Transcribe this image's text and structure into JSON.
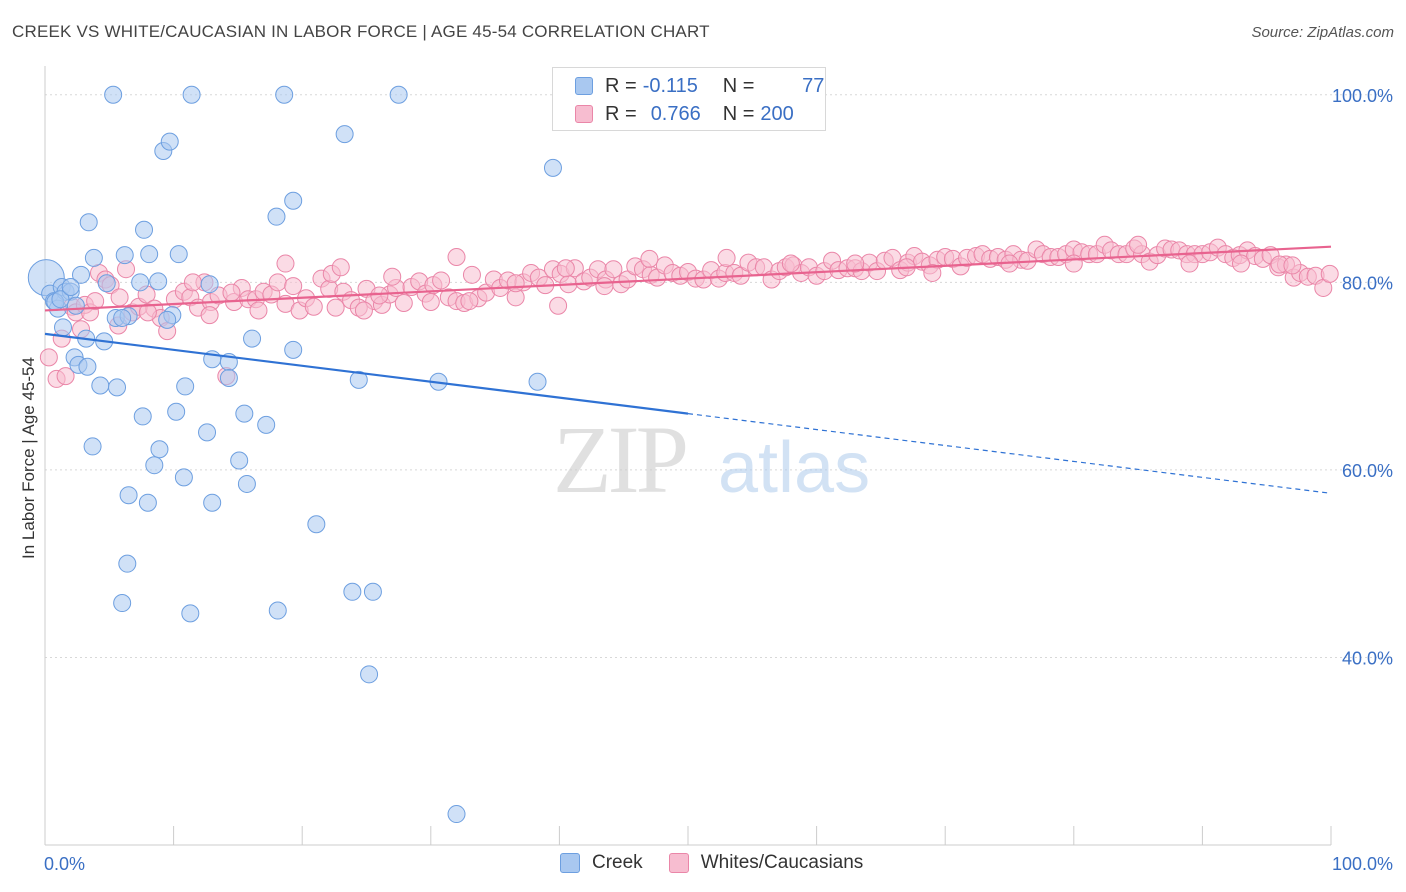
{
  "header": {
    "title": "CREEK VS WHITE/CAUCASIAN IN LABOR FORCE | AGE 45-54 CORRELATION CHART",
    "source": "Source: ZipAtlas.com"
  },
  "legend": {
    "r_label": "R =",
    "n_label": "N =",
    "rows": [
      {
        "r": "-0.115",
        "n": "77",
        "color": "#a9c8f0",
        "border": "#6d9fe0"
      },
      {
        "r": "0.766",
        "n": "200",
        "color": "#f7bdd0",
        "border": "#ea86a8"
      }
    ]
  },
  "watermark": {
    "zip": "ZIP",
    "atlas": "atlas"
  },
  "colors": {
    "creek_fill": "#a9c8f0",
    "creek_stroke": "#6d9fe0",
    "creek_line": "#2f72d4",
    "white_fill": "#f7bdd0",
    "white_stroke": "#ea86a8",
    "white_line": "#e8638f",
    "tick_label": "#3a6fc4",
    "grid": "#d8d8d8"
  },
  "chart_data": {
    "type": "scatter",
    "title": "CREEK VS WHITE/CAUCASIAN IN LABOR FORCE | AGE 45-54 CORRELATION CHART",
    "xlabel": "",
    "ylabel": "In Labor Force | Age 45-54",
    "xlim": [
      0,
      100
    ],
    "ylim": [
      20,
      102
    ],
    "x_tick_labels": [
      "0.0%",
      "100.0%"
    ],
    "y_ticks": [
      40,
      60,
      80,
      100
    ],
    "y_tick_labels": [
      "40.0%",
      "60.0%",
      "80.0%",
      "100.0%"
    ],
    "grid": true,
    "legend_position": "top-center",
    "series": [
      {
        "name": "Creek",
        "r": -0.115,
        "n": 77,
        "trend": {
          "x0": 0,
          "y0": 74.5,
          "x1": 50,
          "y1": 66.0,
          "dash_to_x": 100,
          "dash_to_y": 57.5
        },
        "points": [
          [
            0.1,
            80.5
          ],
          [
            0.4,
            78.8
          ],
          [
            0.7,
            78.0
          ],
          [
            1.0,
            77.2
          ],
          [
            1.3,
            79.5
          ],
          [
            1.6,
            79.0
          ],
          [
            2.0,
            79.0
          ],
          [
            2.4,
            77.5
          ],
          [
            2.8,
            80.8
          ],
          [
            3.4,
            86.4
          ],
          [
            3.8,
            82.6
          ],
          [
            4.6,
            73.7
          ],
          [
            4.8,
            79.9
          ],
          [
            5.3,
            100.0
          ],
          [
            5.5,
            76.2
          ],
          [
            6.2,
            82.9
          ],
          [
            6.5,
            76.4
          ],
          [
            7.4,
            80.0
          ],
          [
            7.7,
            85.6
          ],
          [
            8.1,
            83.0
          ],
          [
            8.8,
            80.1
          ],
          [
            9.2,
            94.0
          ],
          [
            9.7,
            95.0
          ],
          [
            9.9,
            76.5
          ],
          [
            10.4,
            83.0
          ],
          [
            11.4,
            100.0
          ],
          [
            12.8,
            79.8
          ],
          [
            13.0,
            71.8
          ],
          [
            14.3,
            71.5
          ],
          [
            16.1,
            74.0
          ],
          [
            18.0,
            87.0
          ],
          [
            18.6,
            100.0
          ],
          [
            19.3,
            88.7
          ],
          [
            19.3,
            72.8
          ],
          [
            23.3,
            95.8
          ],
          [
            24.4,
            69.6
          ],
          [
            27.5,
            100.0
          ],
          [
            30.6,
            69.4
          ],
          [
            38.3,
            69.4
          ],
          [
            39.5,
            92.2
          ],
          [
            1.4,
            75.2
          ],
          [
            2.3,
            72.0
          ],
          [
            2.6,
            71.2
          ],
          [
            3.3,
            71.0
          ],
          [
            4.3,
            69.0
          ],
          [
            5.6,
            68.8
          ],
          [
            7.6,
            65.7
          ],
          [
            8.9,
            62.2
          ],
          [
            8.5,
            60.5
          ],
          [
            10.2,
            66.2
          ],
          [
            10.8,
            59.2
          ],
          [
            10.9,
            68.9
          ],
          [
            12.6,
            64.0
          ],
          [
            13.0,
            56.5
          ],
          [
            14.3,
            69.8
          ],
          [
            15.1,
            61.0
          ],
          [
            15.5,
            66.0
          ],
          [
            15.7,
            58.5
          ],
          [
            17.2,
            64.8
          ],
          [
            21.1,
            54.2
          ],
          [
            3.7,
            62.5
          ],
          [
            6.5,
            57.3
          ],
          [
            8.0,
            56.5
          ],
          [
            6.4,
            50.0
          ],
          [
            6.0,
            45.8
          ],
          [
            11.3,
            44.7
          ],
          [
            18.1,
            45.0
          ],
          [
            23.9,
            47.0
          ],
          [
            25.5,
            47.0
          ],
          [
            25.2,
            38.2
          ],
          [
            32.0,
            23.3
          ],
          [
            0.8,
            77.9
          ],
          [
            1.2,
            78.2
          ],
          [
            3.2,
            74.0
          ],
          [
            6.0,
            76.2
          ],
          [
            9.5,
            76.0
          ],
          [
            2.0,
            79.5
          ]
        ]
      },
      {
        "name": "Whites/Caucasians",
        "r": 0.766,
        "n": 200,
        "trend": {
          "x0": 0,
          "y0": 77.0,
          "x1": 100,
          "y1": 83.8
        },
        "points": [
          [
            0.3,
            72.0
          ],
          [
            0.9,
            69.7
          ],
          [
            1.3,
            74.0
          ],
          [
            1.6,
            70.0
          ],
          [
            2.1,
            77.4
          ],
          [
            2.4,
            76.8
          ],
          [
            2.8,
            75.0
          ],
          [
            3.1,
            77.6
          ],
          [
            3.5,
            76.8
          ],
          [
            3.9,
            78.0
          ],
          [
            4.2,
            81.0
          ],
          [
            4.7,
            80.3
          ],
          [
            5.1,
            79.7
          ],
          [
            5.7,
            75.4
          ],
          [
            6.3,
            81.4
          ],
          [
            6.8,
            76.8
          ],
          [
            7.3,
            77.4
          ],
          [
            7.9,
            78.7
          ],
          [
            8.5,
            77.2
          ],
          [
            9.0,
            76.2
          ],
          [
            9.5,
            74.8
          ],
          [
            10.1,
            78.2
          ],
          [
            10.8,
            79.0
          ],
          [
            11.3,
            78.4
          ],
          [
            11.9,
            77.3
          ],
          [
            12.4,
            80.0
          ],
          [
            12.9,
            77.9
          ],
          [
            13.5,
            78.6
          ],
          [
            14.1,
            70.0
          ],
          [
            14.7,
            77.9
          ],
          [
            15.3,
            79.4
          ],
          [
            15.8,
            78.2
          ],
          [
            16.4,
            78.2
          ],
          [
            17.0,
            79.0
          ],
          [
            17.6,
            78.7
          ],
          [
            18.1,
            80.0
          ],
          [
            18.7,
            77.7
          ],
          [
            19.3,
            79.6
          ],
          [
            19.8,
            77.0
          ],
          [
            20.3,
            78.3
          ],
          [
            20.9,
            77.4
          ],
          [
            21.5,
            80.4
          ],
          [
            22.1,
            79.3
          ],
          [
            22.6,
            77.3
          ],
          [
            23.2,
            79.0
          ],
          [
            23.8,
            78.1
          ],
          [
            24.4,
            77.3
          ],
          [
            25.0,
            79.3
          ],
          [
            25.6,
            78.0
          ],
          [
            26.2,
            77.6
          ],
          [
            26.8,
            78.7
          ],
          [
            27.3,
            79.4
          ],
          [
            27.9,
            77.8
          ],
          [
            28.5,
            79.5
          ],
          [
            29.1,
            80.1
          ],
          [
            29.6,
            78.8
          ],
          [
            30.2,
            79.7
          ],
          [
            30.8,
            80.2
          ],
          [
            31.4,
            78.4
          ],
          [
            32.0,
            78.0
          ],
          [
            32.6,
            77.8
          ],
          [
            33.2,
            80.8
          ],
          [
            33.7,
            78.3
          ],
          [
            34.3,
            78.9
          ],
          [
            34.9,
            80.3
          ],
          [
            35.4,
            79.4
          ],
          [
            36.0,
            80.2
          ],
          [
            36.6,
            78.4
          ],
          [
            37.2,
            80.0
          ],
          [
            37.8,
            81.0
          ],
          [
            38.4,
            80.5
          ],
          [
            38.9,
            79.7
          ],
          [
            39.5,
            81.4
          ],
          [
            40.1,
            80.9
          ],
          [
            40.7,
            79.8
          ],
          [
            41.2,
            81.5
          ],
          [
            41.9,
            80.1
          ],
          [
            42.4,
            80.5
          ],
          [
            43.0,
            81.4
          ],
          [
            43.6,
            80.3
          ],
          [
            44.2,
            81.4
          ],
          [
            44.8,
            79.8
          ],
          [
            45.3,
            80.3
          ],
          [
            45.9,
            81.7
          ],
          [
            46.5,
            81.4
          ],
          [
            47.1,
            80.8
          ],
          [
            47.6,
            80.5
          ],
          [
            48.2,
            81.8
          ],
          [
            48.8,
            81.0
          ],
          [
            49.4,
            80.7
          ],
          [
            50.0,
            81.1
          ],
          [
            50.6,
            80.4
          ],
          [
            51.2,
            80.3
          ],
          [
            51.8,
            81.3
          ],
          [
            52.4,
            80.4
          ],
          [
            52.9,
            81.0
          ],
          [
            53.6,
            81.0
          ],
          [
            54.1,
            80.7
          ],
          [
            54.7,
            82.1
          ],
          [
            55.3,
            81.6
          ],
          [
            55.9,
            81.6
          ],
          [
            56.5,
            80.3
          ],
          [
            57.1,
            81.2
          ],
          [
            57.6,
            81.6
          ],
          [
            58.2,
            81.8
          ],
          [
            58.8,
            81.0
          ],
          [
            59.4,
            81.6
          ],
          [
            60.0,
            80.7
          ],
          [
            60.6,
            81.2
          ],
          [
            61.2,
            82.3
          ],
          [
            61.7,
            81.3
          ],
          [
            62.4,
            81.5
          ],
          [
            63.0,
            81.5
          ],
          [
            63.5,
            81.2
          ],
          [
            64.1,
            82.1
          ],
          [
            64.7,
            81.2
          ],
          [
            65.3,
            82.3
          ],
          [
            65.9,
            82.6
          ],
          [
            66.5,
            81.3
          ],
          [
            67.1,
            82.1
          ],
          [
            67.6,
            82.8
          ],
          [
            68.2,
            82.2
          ],
          [
            68.8,
            81.8
          ],
          [
            69.4,
            82.4
          ],
          [
            70.0,
            82.7
          ],
          [
            70.6,
            82.5
          ],
          [
            71.2,
            81.7
          ],
          [
            71.7,
            82.6
          ],
          [
            72.4,
            82.8
          ],
          [
            72.9,
            83.0
          ],
          [
            73.5,
            82.5
          ],
          [
            74.1,
            82.7
          ],
          [
            74.7,
            82.4
          ],
          [
            75.3,
            83.0
          ],
          [
            75.9,
            82.4
          ],
          [
            76.4,
            82.3
          ],
          [
            77.1,
            83.5
          ],
          [
            77.6,
            83.0
          ],
          [
            78.2,
            82.7
          ],
          [
            78.8,
            82.7
          ],
          [
            79.4,
            83.0
          ],
          [
            80.0,
            83.5
          ],
          [
            80.6,
            83.2
          ],
          [
            81.2,
            83.0
          ],
          [
            81.8,
            83.0
          ],
          [
            82.4,
            84.0
          ],
          [
            82.9,
            83.4
          ],
          [
            83.5,
            83.0
          ],
          [
            84.1,
            83.0
          ],
          [
            84.7,
            83.6
          ],
          [
            85.3,
            83.0
          ],
          [
            85.9,
            82.2
          ],
          [
            86.5,
            82.9
          ],
          [
            87.1,
            83.6
          ],
          [
            87.6,
            83.5
          ],
          [
            88.2,
            83.4
          ],
          [
            88.8,
            83.0
          ],
          [
            89.4,
            83.0
          ],
          [
            90.0,
            83.0
          ],
          [
            90.6,
            83.2
          ],
          [
            91.2,
            83.7
          ],
          [
            91.8,
            83.0
          ],
          [
            92.4,
            82.6
          ],
          [
            92.9,
            82.9
          ],
          [
            93.5,
            83.4
          ],
          [
            94.1,
            82.8
          ],
          [
            94.7,
            82.5
          ],
          [
            95.3,
            82.9
          ],
          [
            95.9,
            81.6
          ],
          [
            96.5,
            81.9
          ],
          [
            97.1,
            80.5
          ],
          [
            97.6,
            81.0
          ],
          [
            98.2,
            80.6
          ],
          [
            98.8,
            80.7
          ],
          [
            99.4,
            79.4
          ],
          [
            99.9,
            80.9
          ],
          [
            27.0,
            80.6
          ],
          [
            22.3,
            80.9
          ],
          [
            33.0,
            78.0
          ],
          [
            39.9,
            77.5
          ],
          [
            43.5,
            79.6
          ],
          [
            47.0,
            82.5
          ],
          [
            53.0,
            82.6
          ],
          [
            58.0,
            82.0
          ],
          [
            63.0,
            82.0
          ],
          [
            67.0,
            81.6
          ],
          [
            69.0,
            81.0
          ],
          [
            75.0,
            82.0
          ],
          [
            80.0,
            82.0
          ],
          [
            85.0,
            84.0
          ],
          [
            89.0,
            82.0
          ],
          [
            93.0,
            82.0
          ],
          [
            96.0,
            81.9
          ],
          [
            97.0,
            81.8
          ],
          [
            23.0,
            81.6
          ],
          [
            32.0,
            82.7
          ],
          [
            36.6,
            79.9
          ],
          [
            40.5,
            81.5
          ],
          [
            11.5,
            80.0
          ],
          [
            18.7,
            82.0
          ],
          [
            30.0,
            77.9
          ],
          [
            26.0,
            78.6
          ],
          [
            24.8,
            77.0
          ],
          [
            16.6,
            77.0
          ],
          [
            12.8,
            76.5
          ],
          [
            5.8,
            78.4
          ],
          [
            8.0,
            76.8
          ],
          [
            14.5,
            78.9
          ]
        ]
      }
    ]
  }
}
